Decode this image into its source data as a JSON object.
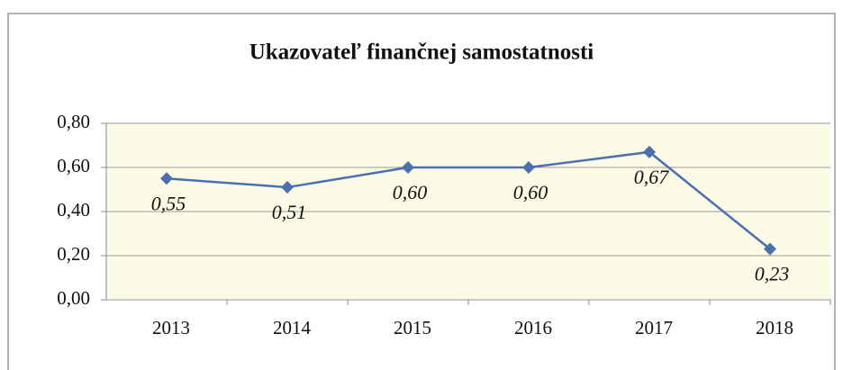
{
  "chart_data": {
    "type": "line",
    "title": "Ukazovateľ finančnej samostatnosti",
    "categories": [
      "2013",
      "2014",
      "2015",
      "2016",
      "2017",
      "2018"
    ],
    "values": [
      0.55,
      0.51,
      0.6,
      0.6,
      0.67,
      0.23
    ],
    "value_labels": [
      "0,55",
      "0,51",
      "0,60",
      "0,60",
      "0,67",
      "0,23"
    ],
    "color": "#4a70b0",
    "ylim": [
      0,
      0.8
    ],
    "yticks": [
      {
        "value": 0,
        "label": "0,00"
      },
      {
        "value": 0.2,
        "label": "0,20"
      },
      {
        "value": 0.4,
        "label": "0,40"
      },
      {
        "value": 0.6,
        "label": "0,60"
      },
      {
        "value": 0.8,
        "label": "0,80"
      }
    ],
    "grid": true
  }
}
